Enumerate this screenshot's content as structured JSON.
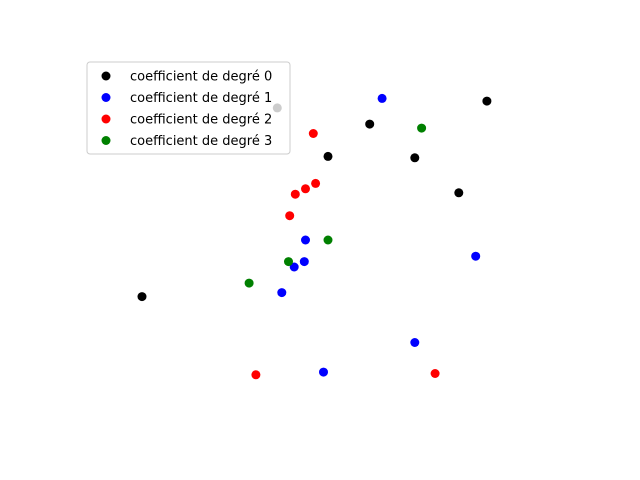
{
  "chart_data": {
    "type": "scatter",
    "title": "",
    "xlabel": "",
    "ylabel": "",
    "axes_visible": false,
    "xlim": [
      -2.2,
      2.2
    ],
    "ylim": [
      -1.35,
      1.35
    ],
    "legend_position": "upper-left",
    "series": [
      {
        "name": "coefficient de degré 0",
        "color": "#000000",
        "points": [
          {
            "x": -1.65,
            "y": -0.42
          },
          {
            "x": -0.45,
            "y": 0.98
          },
          {
            "x": 0.0,
            "y": 0.62
          },
          {
            "x": 0.37,
            "y": 0.86
          },
          {
            "x": 0.77,
            "y": 0.61
          },
          {
            "x": 1.16,
            "y": 0.35
          },
          {
            "x": 1.41,
            "y": 1.03
          }
        ]
      },
      {
        "name": "coefficient de degré 1",
        "color": "#0000ff",
        "points": [
          {
            "x": 0.48,
            "y": 1.05
          },
          {
            "x": -0.2,
            "y": 0.0
          },
          {
            "x": -0.3,
            "y": -0.2
          },
          {
            "x": -0.21,
            "y": -0.16
          },
          {
            "x": -0.41,
            "y": -0.39
          },
          {
            "x": 1.31,
            "y": -0.12
          },
          {
            "x": 0.77,
            "y": -0.76
          },
          {
            "x": -0.04,
            "y": -0.98
          }
        ]
      },
      {
        "name": "coefficient de degré 2",
        "color": "#ff0000",
        "points": [
          {
            "x": -0.13,
            "y": 0.79
          },
          {
            "x": -0.11,
            "y": 0.42
          },
          {
            "x": -0.2,
            "y": 0.38
          },
          {
            "x": -0.29,
            "y": 0.34
          },
          {
            "x": -0.34,
            "y": 0.18
          },
          {
            "x": -0.64,
            "y": -1.0
          },
          {
            "x": 0.95,
            "y": -0.99
          }
        ]
      },
      {
        "name": "coefficient de degré 3",
        "color": "#008000",
        "points": [
          {
            "x": 0.83,
            "y": 0.83
          },
          {
            "x": 0.0,
            "y": 0.0
          },
          {
            "x": -0.35,
            "y": -0.16
          },
          {
            "x": -0.7,
            "y": -0.32
          }
        ]
      }
    ]
  }
}
